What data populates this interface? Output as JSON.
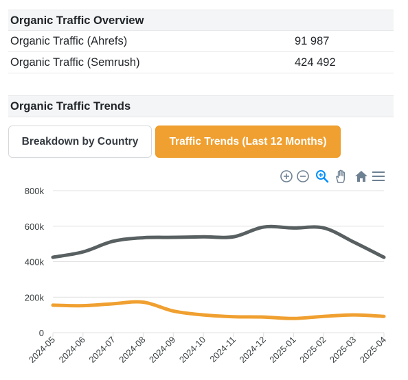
{
  "overview": {
    "title": "Organic Traffic Overview",
    "rows": [
      {
        "label": "Organic Traffic (Ahrefs)",
        "value": "91 987"
      },
      {
        "label": "Organic Traffic (Semrush)",
        "value": "424 492"
      }
    ]
  },
  "trends": {
    "title": "Organic Traffic Trends",
    "tabs": [
      {
        "label": "Breakdown by Country",
        "active": false
      },
      {
        "label": "Traffic Trends (Last 12 Months)",
        "active": true
      }
    ],
    "accent_color": "#f0a030"
  },
  "toolbar": {
    "icons": [
      "zoom-in-icon",
      "zoom-out-icon",
      "zoom-selection-icon",
      "pan-hand-icon",
      "home-reset-icon",
      "menu-icon"
    ]
  },
  "chart_data": {
    "type": "line",
    "x": [
      "2024-05",
      "2024-06",
      "2024-07",
      "2024-08",
      "2024-09",
      "2024-10",
      "2024-11",
      "2024-12",
      "2025-01",
      "2025-02",
      "2025-03",
      "2025-04"
    ],
    "ylim": [
      0,
      800000
    ],
    "yticks": [
      "0",
      "200k",
      "400k",
      "600k",
      "800k"
    ],
    "grid": true,
    "series": [
      {
        "color": "#596061",
        "values": [
          425000,
          455000,
          515000,
          535000,
          537000,
          540000,
          540000,
          595000,
          590000,
          590000,
          510000,
          424492
        ]
      },
      {
        "color": "#f0a030",
        "values": [
          155000,
          152000,
          163000,
          172000,
          122000,
          100000,
          90000,
          88000,
          80000,
          92000,
          100000,
          91987
        ]
      }
    ]
  }
}
